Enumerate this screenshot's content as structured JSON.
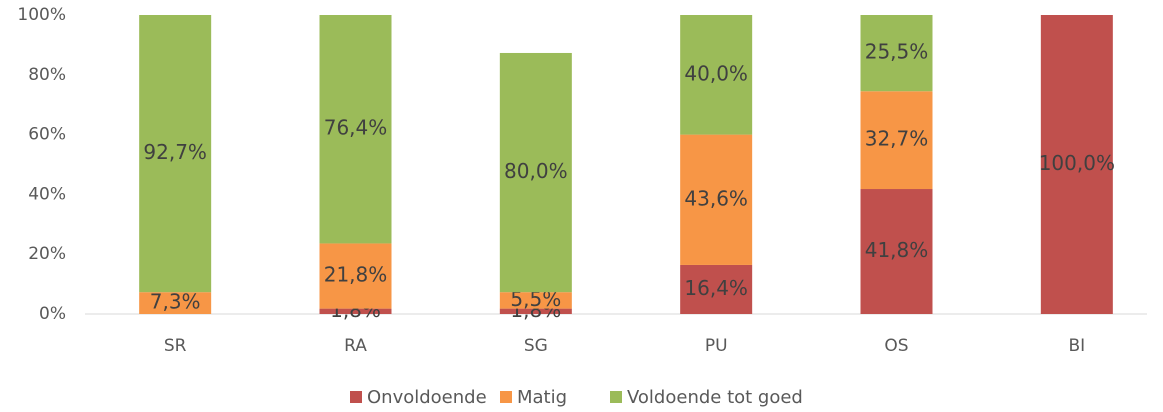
{
  "chart_data": {
    "type": "stacked_bar",
    "categories": [
      "SR",
      "RA",
      "SG",
      "PU",
      "OS",
      "BI"
    ],
    "series": [
      {
        "name": "Onvoldoende",
        "color": "#c0504d",
        "values": [
          null,
          1.8,
          1.8,
          16.4,
          41.8,
          100.0
        ],
        "value_labels": [
          null,
          "1,8%",
          "1,8%",
          "16,4%",
          "41,8%",
          "100,0%"
        ]
      },
      {
        "name": "Matig",
        "color": "#f79646",
        "values": [
          7.3,
          21.8,
          5.5,
          43.6,
          32.7,
          null
        ],
        "value_labels": [
          "7,3%",
          "21,8%",
          "5,5%",
          "43,6%",
          "32,7%",
          null
        ]
      },
      {
        "name": "Voldoende tot goed",
        "color": "#9bbb59",
        "values": [
          92.7,
          76.4,
          80.0,
          40.0,
          25.5,
          null
        ],
        "value_labels": [
          "92,7%",
          "76,4%",
          "80,0%",
          "40,0%",
          "25,5%",
          null
        ]
      }
    ],
    "ylim": [
      0,
      100
    ],
    "yticks": [
      {
        "value": 0,
        "label": "0%"
      },
      {
        "value": 20,
        "label": "20%"
      },
      {
        "value": 40,
        "label": "40%"
      },
      {
        "value": 60,
        "label": "60%"
      },
      {
        "value": 80,
        "label": "80%"
      },
      {
        "value": 100,
        "label": "100%"
      }
    ],
    "grid": false,
    "legend": "bottom"
  }
}
